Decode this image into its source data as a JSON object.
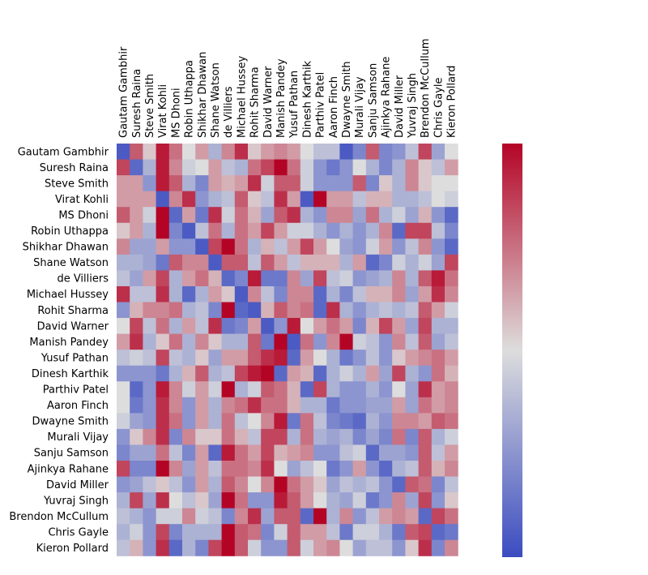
{
  "chart_data": {
    "type": "heatmap",
    "title": "",
    "xlabel": "",
    "ylabel": "",
    "x_tick_position": "top",
    "colormap": [
      "#3b4cc0",
      "#dddddd",
      "#b40426"
    ],
    "players": [
      "Gautam Gambhir",
      "Suresh Raina",
      "Steve Smith",
      "Virat Kohli",
      "MS Dhoni",
      "Robin Uthappa",
      "Shikhar Dhawan",
      "Shane Watson",
      "de Villiers",
      "Michael Hussey",
      "Rohit Sharma",
      "David Warner",
      "Manish Pandey",
      "Yusuf Pathan",
      "Dinesh Karthik",
      "Parthiv Patel",
      "Aaron Finch",
      "Dwayne Smith",
      "Murali Vijay",
      "Sanju Samson",
      "Ajinkya Rahane",
      "David Miller",
      "Yuvraj Singh",
      "Brendon McCullum",
      "Chris Gayle",
      "Kieron Pollard"
    ],
    "colorbar_labels": [],
    "values": [
      [
        -0.9,
        0.6,
        0.1,
        0.9,
        0.5,
        0.0,
        0.3,
        -0.3,
        0.4,
        0.8,
        0.1,
        0.3,
        0.4,
        0.3,
        0.0,
        -0.2,
        -0.2,
        -0.9,
        -0.6,
        0.6,
        -0.6,
        -0.5,
        -0.2,
        0.7,
        -0.4,
        0.0
      ],
      [
        0.7,
        -0.8,
        -0.3,
        0.9,
        0.4,
        -0.1,
        0.0,
        0.3,
        -0.2,
        -0.3,
        0.5,
        0.7,
        1.0,
        0.5,
        -0.1,
        -0.5,
        -0.7,
        -0.5,
        0.0,
        -0.3,
        -0.6,
        -0.3,
        0.4,
        0.1,
        -0.2,
        0.3
      ],
      [
        0.3,
        0.3,
        -0.5,
        0.9,
        0.6,
        -0.3,
        -0.6,
        0.3,
        0.2,
        0.3,
        0.8,
        -0.1,
        0.6,
        0.6,
        -0.1,
        -0.5,
        -0.5,
        -0.5,
        0.6,
        -0.6,
        0.1,
        -0.3,
        0.4,
        0.1,
        0.0,
        0.0
      ],
      [
        0.3,
        0.3,
        0.3,
        -0.9,
        0.4,
        0.8,
        -0.5,
        -0.3,
        -0.2,
        0.6,
        0.1,
        -0.2,
        0.8,
        0.3,
        -0.9,
        1.0,
        0.3,
        0.3,
        -0.2,
        0.2,
        0.2,
        -0.3,
        -0.3,
        -0.2,
        0.0,
        -0.1
      ],
      [
        0.6,
        0.3,
        -0.1,
        1.0,
        -0.8,
        0.3,
        -0.7,
        0.8,
        -0.1,
        0.5,
        0.2,
        -0.4,
        0.6,
        0.8,
        -0.3,
        -0.5,
        0.4,
        0.4,
        -0.4,
        0.5,
        -0.3,
        -0.1,
        -0.4,
        0.2,
        -0.5,
        -0.8
      ],
      [
        0.1,
        0.3,
        -0.3,
        1.0,
        -0.6,
        -0.9,
        -0.2,
        0.5,
        -0.3,
        0.5,
        0.3,
        0.7,
        0.3,
        -0.1,
        -0.1,
        -0.3,
        -0.5,
        -0.3,
        -0.5,
        -0.3,
        0.4,
        -0.8,
        0.7,
        0.7,
        -0.2,
        -0.6
      ],
      [
        0.4,
        -0.4,
        -0.4,
        0.3,
        -0.5,
        -0.5,
        -0.9,
        0.7,
        1.0,
        0.5,
        -0.3,
        0.2,
        -0.2,
        0.3,
        0.7,
        0.3,
        0.0,
        -0.4,
        -0.5,
        -0.1,
        0.3,
        -0.5,
        -0.2,
        0.4,
        -0.5,
        -0.8
      ],
      [
        -0.3,
        -0.3,
        -0.4,
        -0.7,
        0.6,
        0.4,
        0.4,
        -0.9,
        0.6,
        0.6,
        -0.2,
        0.6,
        0.3,
        -0.2,
        0.2,
        0.2,
        0.2,
        -0.3,
        0.3,
        -0.8,
        -0.6,
        -0.1,
        -0.3,
        -0.1,
        -0.4,
        0.7
      ],
      [
        -0.2,
        -0.4,
        0.3,
        0.7,
        -0.3,
        0.3,
        0.5,
        0.2,
        -0.8,
        -0.6,
        0.9,
        -0.7,
        -0.7,
        0.4,
        -0.4,
        0.7,
        -0.2,
        -0.1,
        -0.5,
        -0.4,
        -0.3,
        0.4,
        -0.3,
        0.6,
        0.9,
        0.5
      ],
      [
        0.8,
        -0.2,
        -0.2,
        0.8,
        -0.3,
        -0.8,
        -0.3,
        0.3,
        0.1,
        -0.9,
        0.4,
        -0.2,
        -0.6,
        0.4,
        0.4,
        -0.8,
        -0.3,
        -0.6,
        -0.2,
        0.2,
        0.2,
        0.4,
        -0.4,
        0.3,
        0.8,
        0.4
      ],
      [
        -0.5,
        0.2,
        0.4,
        0.4,
        0.5,
        -0.3,
        -0.2,
        -0.6,
        1.0,
        -0.8,
        -0.9,
        0.2,
        0.6,
        0.4,
        0.5,
        -0.8,
        0.8,
        -0.3,
        -0.5,
        -0.3,
        -0.2,
        -0.3,
        -0.2,
        0.6,
        0.3,
        -0.1
      ],
      [
        0.0,
        0.7,
        -0.2,
        0.5,
        -0.3,
        0.3,
        -0.2,
        0.8,
        -0.7,
        -0.6,
        0.3,
        -0.9,
        -0.5,
        0.9,
        0.0,
        0.3,
        0.5,
        0.3,
        -0.6,
        0.2,
        0.7,
        0.3,
        -0.4,
        0.7,
        -0.3,
        -0.3
      ],
      [
        0.3,
        0.8,
        -0.3,
        0.1,
        0.5,
        -0.3,
        0.4,
        0.1,
        -0.3,
        -0.3,
        0.6,
        -0.7,
        1.0,
        -0.9,
        0.5,
        -0.5,
        0.4,
        1.0,
        -0.1,
        -0.2,
        -0.5,
        0.4,
        -0.2,
        0.6,
        -0.4,
        -0.2
      ],
      [
        -0.2,
        -0.1,
        -0.2,
        0.7,
        -0.2,
        -0.3,
        0.1,
        -0.4,
        0.3,
        0.3,
        0.6,
        0.8,
        0.9,
        -0.8,
        0.3,
        0.0,
        -0.3,
        -0.7,
        -0.5,
        -0.2,
        -0.5,
        0.1,
        0.3,
        0.4,
        0.5,
        0.3
      ],
      [
        -0.5,
        -0.5,
        -0.5,
        -0.7,
        -0.3,
        0.2,
        0.6,
        -0.3,
        -0.2,
        0.7,
        0.9,
        1.0,
        -0.8,
        0.3,
        0.2,
        -0.8,
        -0.3,
        -0.1,
        -0.3,
        0.3,
        -0.4,
        0.7,
        -0.3,
        -0.5,
        0.5,
        0.2
      ],
      [
        0.0,
        -0.8,
        -0.5,
        0.9,
        0.4,
        -0.1,
        0.3,
        -0.1,
        1.0,
        -0.3,
        -0.1,
        0.6,
        0.5,
        0.2,
        -0.8,
        0.7,
        -0.3,
        -0.5,
        -0.5,
        -0.3,
        -0.5,
        0.0,
        -0.4,
        0.8,
        0.3,
        0.4
      ],
      [
        0.0,
        -0.7,
        -0.5,
        0.8,
        0.4,
        -0.5,
        0.3,
        -0.3,
        0.4,
        0.5,
        0.8,
        0.5,
        0.5,
        0.2,
        -0.3,
        -0.3,
        -0.7,
        -0.5,
        -0.5,
        -0.4,
        -0.4,
        0.3,
        -0.4,
        0.5,
        0.3,
        0.4
      ],
      [
        -0.1,
        -0.4,
        -0.5,
        0.8,
        0.5,
        -0.5,
        0.3,
        -0.3,
        0.5,
        -0.2,
        0.0,
        0.4,
        0.9,
        -0.7,
        0.5,
        -0.2,
        -0.6,
        -0.7,
        -0.8,
        -0.3,
        -0.5,
        0.4,
        0.4,
        0.3,
        0.6,
        0.5
      ],
      [
        -0.5,
        0.1,
        0.4,
        0.8,
        -0.6,
        0.4,
        0.1,
        0.1,
        0.5,
        0.2,
        -0.2,
        0.7,
        0.7,
        -0.3,
        0.5,
        -0.3,
        -0.4,
        -0.3,
        -0.6,
        -0.4,
        -0.6,
        0.5,
        -0.6,
        0.6,
        -0.3,
        -0.1
      ],
      [
        -0.6,
        -0.4,
        -0.4,
        0.5,
        -0.2,
        -0.6,
        0.3,
        -0.8,
        0.9,
        0.5,
        0.3,
        0.7,
        0.2,
        0.3,
        0.4,
        -0.5,
        -0.5,
        -0.2,
        -0.1,
        -0.8,
        -0.4,
        -0.4,
        -0.5,
        0.6,
        -0.2,
        0.3
      ],
      [
        0.7,
        -0.6,
        -0.6,
        1.0,
        0.4,
        -0.4,
        0.3,
        -0.2,
        0.5,
        0.5,
        0.4,
        0.8,
        0.0,
        -0.4,
        -0.2,
        0.0,
        -0.7,
        -0.5,
        0.3,
        -0.5,
        -0.8,
        -0.3,
        -0.2,
        0.6,
        0.2,
        0.4
      ],
      [
        -0.5,
        -0.4,
        -0.2,
        0.1,
        -0.2,
        -0.5,
        0.3,
        -0.3,
        0.6,
        0.4,
        0.0,
        0.4,
        1.0,
        0.5,
        0.3,
        0.1,
        -0.4,
        -0.2,
        -0.3,
        -0.2,
        -0.5,
        -0.8,
        0.6,
        0.5,
        -0.6,
        -0.2
      ],
      [
        -0.3,
        0.7,
        -0.4,
        0.8,
        0.0,
        -0.2,
        0.1,
        -0.4,
        1.0,
        0.5,
        -0.5,
        -0.5,
        0.9,
        0.6,
        0.3,
        0.0,
        -0.3,
        -0.4,
        -0.1,
        -0.7,
        -0.5,
        0.4,
        -0.4,
        0.7,
        -0.5,
        0.1
      ],
      [
        -0.2,
        -0.3,
        -0.5,
        -0.1,
        -0.1,
        0.4,
        -0.1,
        -0.2,
        -0.6,
        0.4,
        0.8,
        -0.4,
        0.6,
        0.6,
        -0.8,
        1.0,
        -0.3,
        0.4,
        -0.5,
        -0.2,
        0.3,
        0.4,
        0.3,
        -0.8,
        0.7,
        0.5
      ],
      [
        -0.3,
        -0.1,
        -0.5,
        0.7,
        -0.6,
        -0.3,
        -0.3,
        -0.3,
        1.0,
        0.6,
        0.5,
        -0.6,
        -0.1,
        0.6,
        0.3,
        0.3,
        -0.2,
        -0.7,
        -0.1,
        -0.1,
        -0.3,
        -0.7,
        0.6,
        0.7,
        -0.8,
        -0.7
      ],
      [
        -0.2,
        0.2,
        -0.5,
        0.8,
        -0.8,
        -0.3,
        -0.6,
        0.7,
        1.0,
        0.6,
        -0.1,
        -0.5,
        -0.5,
        0.6,
        -0.1,
        0.3,
        0.4,
        0.0,
        -0.4,
        -0.2,
        -0.2,
        -0.5,
        0.1,
        0.8,
        -0.6,
        0.4
      ]
    ]
  }
}
